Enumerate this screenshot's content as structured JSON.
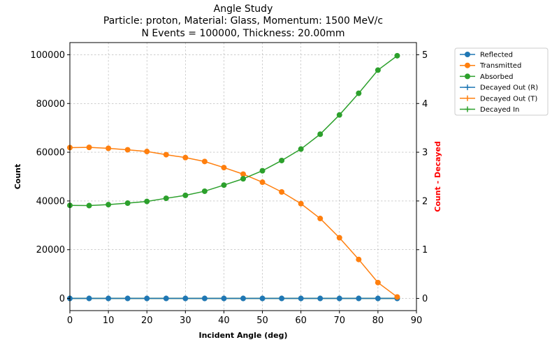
{
  "chart_data": {
    "type": "line",
    "title": "Angle Study",
    "subtitle_1": "Particle: proton, Material: Glass, Momentum: 1500 MeV/c",
    "subtitle_2": "N Events = 100000, Thickness: 20.00mm",
    "xlabel": "Incident Angle (deg)",
    "ylabel": "Count",
    "ylabel_right": "Count - Decayed",
    "ylabel_right_color": "#ff0000",
    "xlim": [
      0,
      90
    ],
    "ylim": [
      -5000,
      105000
    ],
    "ylim_right": [
      -0.25,
      5.25
    ],
    "x_ticks": [
      0,
      10,
      20,
      30,
      40,
      50,
      60,
      70,
      80,
      90
    ],
    "x_tick_labels": [
      "0",
      "10",
      "20",
      "30",
      "40",
      "50",
      "60",
      "70",
      "80",
      "90"
    ],
    "y_ticks": [
      0,
      20000,
      40000,
      60000,
      80000,
      100000
    ],
    "y_tick_labels": [
      "0",
      "20000",
      "40000",
      "60000",
      "80000",
      "100000"
    ],
    "y_ticks_right": [
      0,
      1,
      2,
      3,
      4,
      5
    ],
    "y_tick_labels_right": [
      "0",
      "1",
      "2",
      "3",
      "4",
      "5"
    ],
    "grid": true,
    "legend_position": "outside-right-top",
    "x": [
      0,
      5,
      10,
      15,
      20,
      25,
      30,
      35,
      40,
      45,
      50,
      55,
      60,
      65,
      70,
      75,
      80,
      85
    ],
    "series": [
      {
        "name": "Reflected",
        "axis": "left",
        "marker": "circle",
        "color": "#1f77b4",
        "values": [
          0,
          0,
          0,
          0,
          0,
          0,
          0,
          0,
          0,
          0,
          0,
          0,
          0,
          0,
          0,
          0,
          0,
          0
        ]
      },
      {
        "name": "Transmitted",
        "axis": "left",
        "marker": "circle",
        "color": "#ff7f0e",
        "values": [
          61900,
          62000,
          61600,
          61000,
          60300,
          59000,
          57800,
          56200,
          53700,
          51000,
          47700,
          43700,
          38900,
          32800,
          24900,
          16000,
          6500,
          600
        ]
      },
      {
        "name": "Absorbed",
        "axis": "left",
        "marker": "circle",
        "color": "#2ca02c",
        "values": [
          38200,
          38100,
          38500,
          39100,
          39800,
          41100,
          42300,
          44000,
          46500,
          49100,
          52400,
          56600,
          61300,
          67400,
          75300,
          84200,
          93700,
          99600
        ]
      },
      {
        "name": "Decayed Out (R)",
        "axis": "right",
        "marker": "plus",
        "color": "#1f77b4",
        "values": [
          0,
          0,
          0,
          0,
          0,
          0,
          0,
          0,
          0,
          0,
          0,
          0,
          0,
          0,
          0,
          0,
          0,
          0
        ]
      },
      {
        "name": "Decayed Out (T)",
        "axis": "right",
        "marker": "plus",
        "color": "#ff7f0e",
        "values": [
          0,
          0,
          0,
          0,
          0,
          0,
          0,
          0,
          0,
          0,
          0,
          0,
          0,
          0,
          0,
          0,
          0,
          0
        ]
      },
      {
        "name": "Decayed In",
        "axis": "right",
        "marker": "plus",
        "color": "#2ca02c",
        "values": [
          0,
          0,
          0,
          0,
          0,
          0,
          0,
          0,
          0,
          0,
          0,
          0,
          0,
          0,
          0,
          0,
          0,
          0
        ]
      }
    ]
  }
}
